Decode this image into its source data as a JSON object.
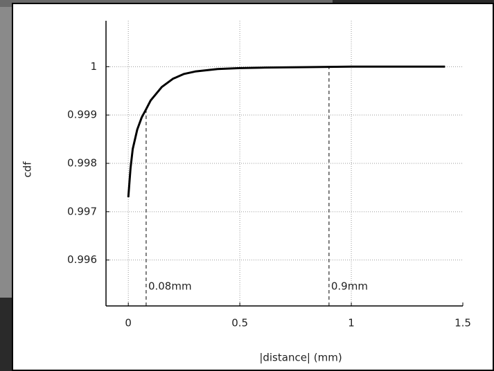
{
  "chart_data": {
    "type": "line",
    "x_label": "|distance| (mm)",
    "y_label": "cdf",
    "x": [
      0,
      0.01,
      0.02,
      0.04,
      0.06,
      0.08,
      0.1,
      0.15,
      0.2,
      0.25,
      0.3,
      0.4,
      0.5,
      0.6,
      0.8,
      1.0,
      1.42
    ],
    "series": [
      {
        "color": "#000000",
        "values": [
          0.9973,
          0.9979,
          0.9983,
          0.9987,
          0.99895,
          0.99912,
          0.9993,
          0.99958,
          0.99975,
          0.99985,
          0.9999,
          0.99995,
          0.99997,
          0.99998,
          0.99999,
          1.0,
          1.0
        ]
      }
    ],
    "markers": [
      {
        "x": 0.08,
        "y": 0.99912,
        "label": "0.08mm"
      },
      {
        "x": 0.9,
        "y": 1.0,
        "label": "0.9mm"
      }
    ],
    "xlim": [
      -0.1,
      1.5
    ],
    "xticks": [
      0,
      0.5,
      1,
      1.5
    ],
    "ylim": [
      0.99505,
      1.00095
    ],
    "yticks": [
      0.996,
      0.997,
      0.998,
      0.999,
      1
    ],
    "grid": true
  }
}
